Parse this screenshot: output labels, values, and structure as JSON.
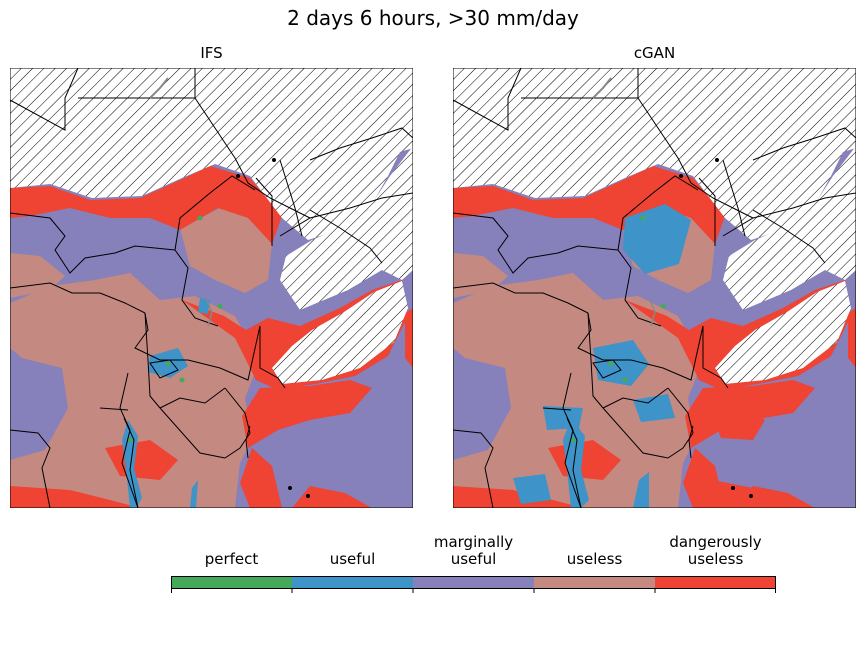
{
  "suptitle": "2 days 6 hours, >30 mm/day",
  "panels": [
    {
      "title": "IFS",
      "variant": "ifs"
    },
    {
      "title": "cGAN",
      "variant": "cgan"
    }
  ],
  "legend": {
    "categories": [
      {
        "label": "perfect",
        "color": "#45a95a"
      },
      {
        "label": "useful",
        "color": "#3e93c8"
      },
      {
        "label": "marginally\nuseful",
        "color": "#8680bb"
      },
      {
        "label": "useless",
        "color": "#c48a82"
      },
      {
        "label": "dangerously\nuseless",
        "color": "#ef4333"
      }
    ]
  },
  "colors": {
    "ocean_land": "#8680bb",
    "hatch_background": "#ffffff",
    "border": "#000000",
    "lake_outline": "#888888"
  }
}
